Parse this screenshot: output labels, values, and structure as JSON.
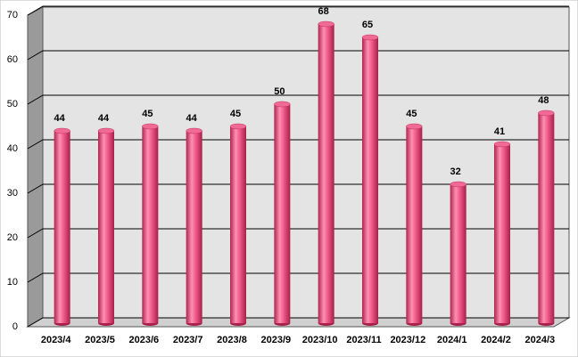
{
  "chart_data": {
    "type": "bar",
    "style": "3d-cylinder",
    "categories": [
      "2023/4",
      "2023/5",
      "2023/6",
      "2023/7",
      "2023/8",
      "2023/9",
      "2023/10",
      "2023/11",
      "2023/12",
      "2024/1",
      "2024/2",
      "2024/3"
    ],
    "values": [
      44,
      44,
      45,
      44,
      45,
      50,
      68,
      65,
      45,
      32,
      41,
      48
    ],
    "color": "#e8457a",
    "ylim": [
      0,
      70
    ],
    "yticks": [
      0,
      10,
      20,
      30,
      40,
      50,
      60,
      70
    ],
    "grid": true
  }
}
